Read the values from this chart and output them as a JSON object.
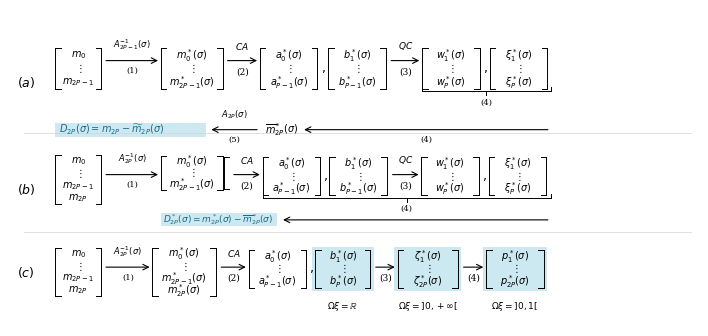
{
  "fig_width": 7.08,
  "fig_height": 3.36,
  "dpi": 100,
  "bg_color": "#ffffff",
  "highlight_color": "#cce8f0",
  "text_color": "#000000",
  "blue_text_color": "#1a6b8a"
}
